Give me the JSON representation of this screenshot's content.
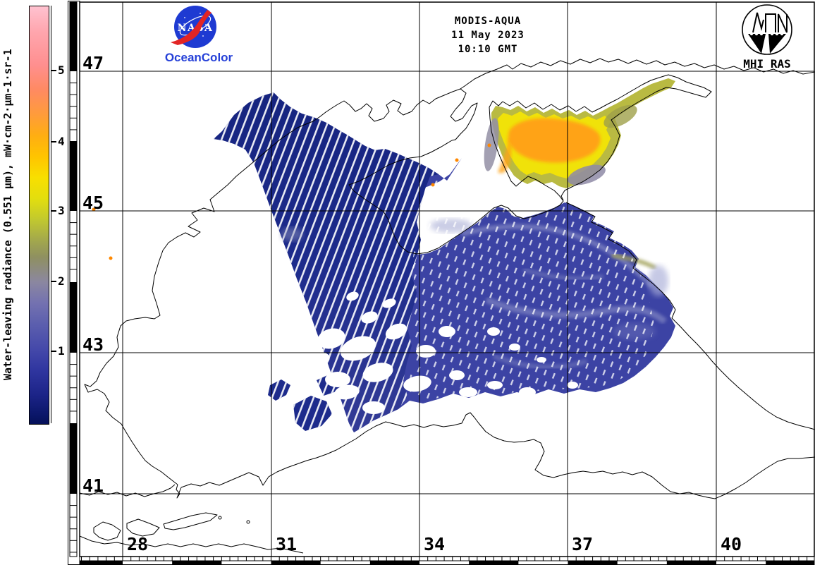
{
  "header": {
    "sensor": "MODIS-AQUA",
    "date": "11 May 2023",
    "time": "10:10 GMT"
  },
  "branding": {
    "nasa_wordmark": "NASA",
    "nasa_sub": "OceanColor",
    "institute": "MHI RAS"
  },
  "colorbar": {
    "label": "Water-leaving radiance (0.551 μm), mW·cm-2·μm-1·sr-1",
    "tick_labels": [
      "5",
      "4",
      "3",
      "2",
      "1"
    ],
    "value_range_approx": [
      0,
      6
    ],
    "colors_top_to_bottom": [
      "#ffc2d0",
      "#ff8f8f",
      "#ff9c3a",
      "#ffb40a",
      "#f8df00",
      "#cacd2a",
      "#8f9060",
      "#8b87a0",
      "#5c5fae",
      "#4246a8",
      "#1c2488",
      "#051058"
    ]
  },
  "grid": {
    "lat_labels": [
      "47",
      "45",
      "43",
      "41"
    ],
    "lon_labels": [
      "28",
      "31",
      "34",
      "37",
      "40"
    ]
  },
  "map_colors": {
    "sea_data_base": "#3c43a4",
    "swath_dark": "#1d2b8c",
    "azov_core": "#ffa312",
    "azov_yellow": "#f0e209",
    "azov_rim": "#b9ba42",
    "coastline": "#000000"
  }
}
